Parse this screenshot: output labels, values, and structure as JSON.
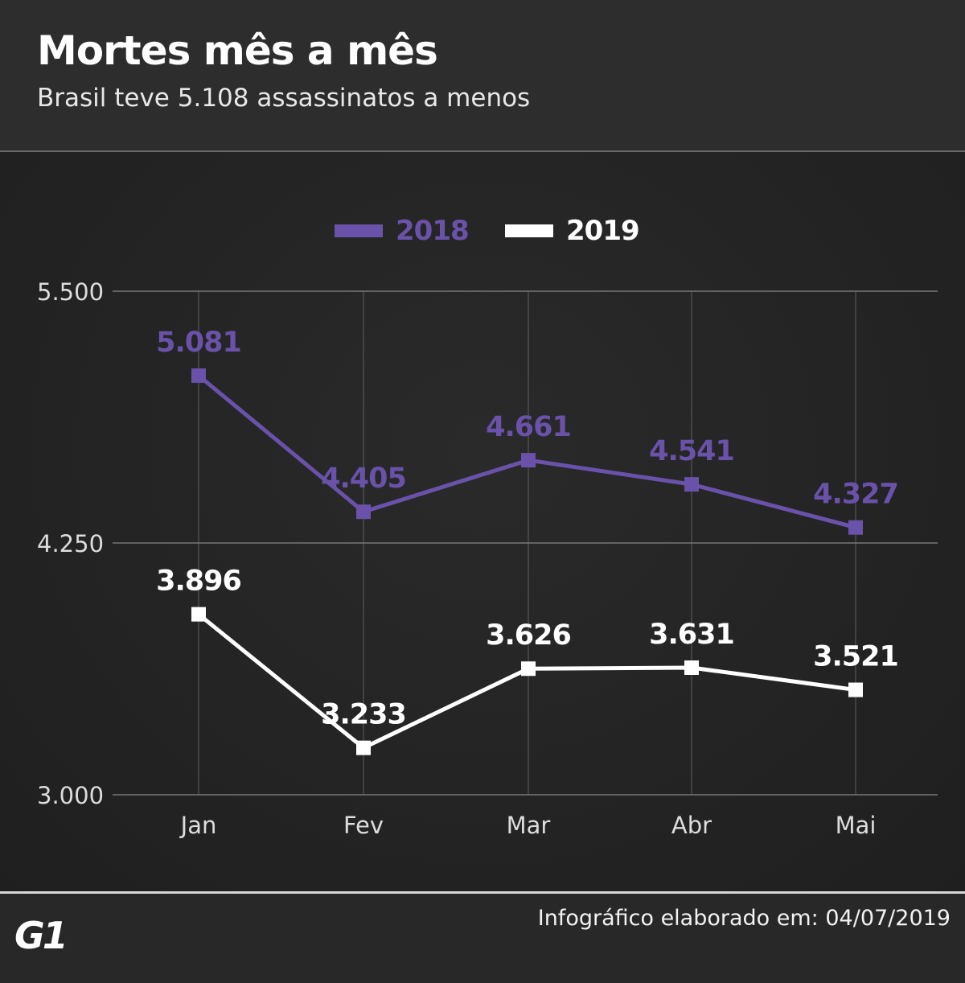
{
  "header": {
    "title": "Mortes mês a mês",
    "subtitle": "Brasil teve 5.108 assassinatos a menos"
  },
  "colors": {
    "series_2018": "#6a52aa",
    "series_2019": "#ffffff",
    "grid": "#777777",
    "tick_text": "#dddddd"
  },
  "chart_data": {
    "type": "line",
    "title": "",
    "xlabel": "",
    "ylabel": "",
    "categories": [
      "Jan",
      "Fev",
      "Mar",
      "Abr",
      "Mai"
    ],
    "series": [
      {
        "name": "2018",
        "values": [
          5081,
          4405,
          4661,
          4541,
          4327
        ],
        "labels": [
          "5.081",
          "4.405",
          "4.661",
          "4.541",
          "4.327"
        ]
      },
      {
        "name": "2019",
        "values": [
          3896,
          3233,
          3626,
          3631,
          3521
        ],
        "labels": [
          "3.896",
          "3.233",
          "3.626",
          "3.631",
          "3.521"
        ]
      }
    ],
    "ylim": [
      3000,
      5500
    ],
    "yticks": [
      3000,
      4250,
      5500
    ],
    "ytick_labels": [
      "3.000",
      "4.250",
      "5.500"
    ],
    "grid": true,
    "legend_position": "top-center",
    "marker": "square"
  },
  "footer": {
    "logo": "G1",
    "credit": "Infográfico elaborado em: 04/07/2019"
  }
}
